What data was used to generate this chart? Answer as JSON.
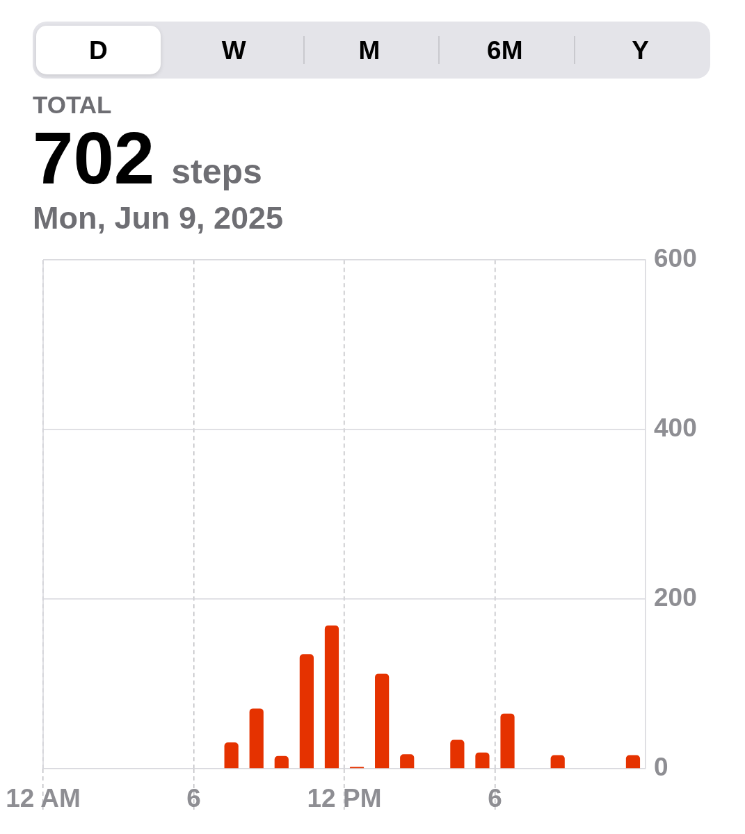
{
  "chart_data": {
    "type": "bar",
    "title": "702 steps",
    "subtitle": "Mon, Jun 9, 2025",
    "annotations": [
      "D",
      "W",
      "M",
      "6M",
      "Y",
      "TOTAL"
    ],
    "x": [
      "2025-06-09T07:30",
      "2025-06-09T08:30",
      "2025-06-09T09:30",
      "2025-06-09T10:30",
      "2025-06-09T11:30",
      "2025-06-09T12:30",
      "2025-06-09T13:30",
      "2025-06-09T14:30",
      "2025-06-09T16:30",
      "2025-06-09T17:30",
      "2025-06-09T18:30",
      "2025-06-09T20:30",
      "2025-06-09T23:30"
    ],
    "values": [
      31,
      71,
      15,
      135,
      169,
      2,
      112,
      17,
      34,
      19,
      65,
      16,
      16
    ],
    "color": "#e53200",
    "xlim": [
      "2025-06-09T00:00",
      "2025-06-10T00:00"
    ],
    "xticks": [
      {
        "value": "2025-06-09T00:00",
        "label": "12 AM"
      },
      {
        "value": "2025-06-09T06:00",
        "label": "6"
      },
      {
        "value": "2025-06-09T12:00",
        "label": "12 PM"
      },
      {
        "value": "2025-06-09T18:00",
        "label": "6"
      }
    ],
    "ylim": [
      0,
      600
    ],
    "yticks": [
      0,
      200,
      400,
      600
    ],
    "grid": true
  }
}
